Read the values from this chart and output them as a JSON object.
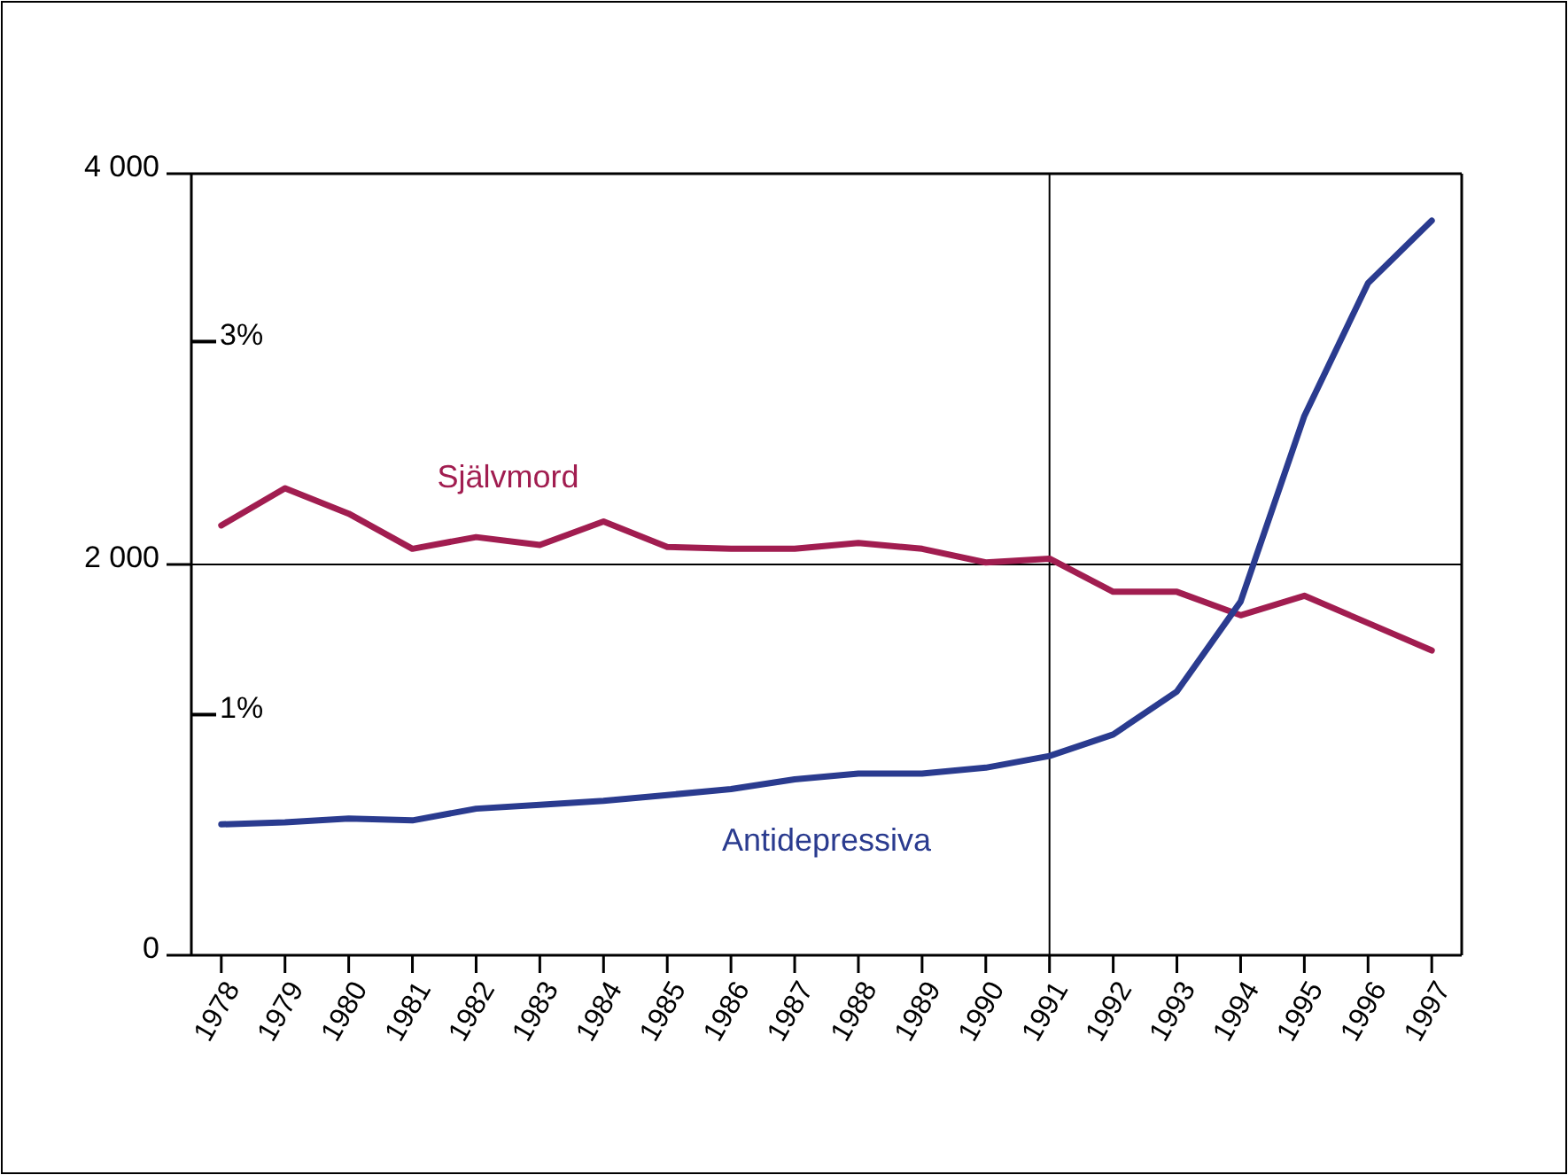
{
  "chart_data": {
    "type": "line",
    "categories": [
      "1978",
      "1979",
      "1980",
      "1981",
      "1982",
      "1983",
      "1984",
      "1985",
      "1986",
      "1987",
      "1988",
      "1989",
      "1990",
      "1991",
      "1992",
      "1993",
      "1994",
      "1995",
      "1996",
      "1997"
    ],
    "series": [
      {
        "name": "Självmord",
        "color": "#a11d50",
        "values": [
          2200,
          2390,
          2260,
          2080,
          2140,
          2100,
          2220,
          2090,
          2080,
          2080,
          2110,
          2080,
          2010,
          2030,
          1860,
          1860,
          1740,
          1840,
          1700,
          1560
        ]
      },
      {
        "name": "Antidepressiva",
        "color": "#2a3b8f",
        "values": [
          670,
          680,
          700,
          690,
          750,
          770,
          790,
          820,
          850,
          900,
          930,
          930,
          960,
          1020,
          1130,
          1350,
          1810,
          2760,
          3440,
          3760
        ]
      }
    ],
    "ylim": [
      0,
      4000
    ],
    "yticks": [
      0,
      {
        "value": 2000,
        "label": "2 000"
      },
      {
        "value": 4000,
        "label": "4 000"
      }
    ],
    "y2lim": [
      -0.29,
      3.9
    ],
    "y2ticks": [
      {
        "value": 1,
        "label": "1%"
      },
      {
        "value": 3,
        "label": "3%"
      }
    ],
    "ref_lines": [
      {
        "axis": "x",
        "value": "1991"
      },
      {
        "axis": "y",
        "value": 2000
      }
    ]
  }
}
